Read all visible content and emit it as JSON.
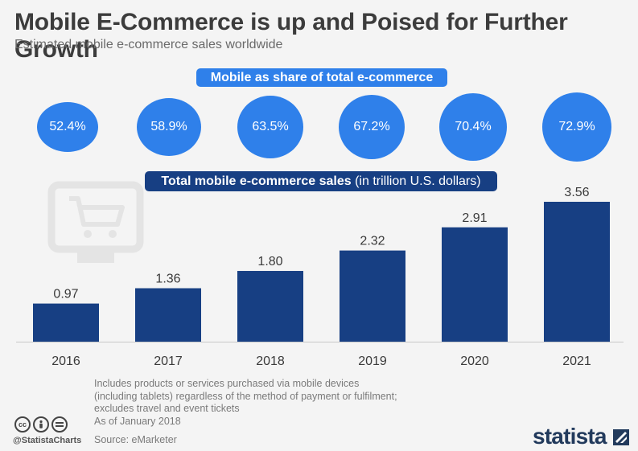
{
  "title": "Mobile E-Commerce is up and Poised for Further Growth",
  "subtitle": "Estimated mobile e-commerce sales worldwide",
  "share_label": "Mobile as share of total e-commerce",
  "sales_label_bold": "Total mobile e-commerce sales",
  "sales_label_unit": " (in trillion U.S. dollars)",
  "shares": [
    "52.4%",
    "58.9%",
    "63.5%",
    "67.2%",
    "70.4%",
    "72.9%"
  ],
  "share_values": [
    52.4,
    58.9,
    63.5,
    67.2,
    70.4,
    72.9
  ],
  "chart_data": {
    "type": "bar",
    "categories": [
      "2016",
      "2017",
      "2018",
      "2019",
      "2020",
      "2021"
    ],
    "values": [
      0.97,
      1.36,
      1.8,
      2.32,
      2.91,
      3.56
    ],
    "value_labels": [
      "0.97",
      "1.36",
      "1.80",
      "2.32",
      "2.91",
      "3.56"
    ],
    "title": "Mobile E-Commerce is up and Poised for Further Growth",
    "subtitle": "Estimated mobile e-commerce sales worldwide",
    "xlabel": "",
    "ylabel": "",
    "ylim": [
      0,
      3.56
    ],
    "grid": false,
    "bar_color": "#173f83"
  },
  "notes": [
    "Includes products or services purchased via mobile devices",
    "(including tablets) regardless of the method of payment or fulfilment;",
    "excludes travel and event tickets",
    "As of January 2018"
  ],
  "source": "Source: eMarketer",
  "handle": "@StatistaCharts",
  "brand": "statista",
  "license_icons": [
    "cc",
    "by",
    "nd"
  ],
  "colors": {
    "circle": "#2f80ea",
    "bar": "#173f83",
    "background": "#f4f4f4"
  }
}
